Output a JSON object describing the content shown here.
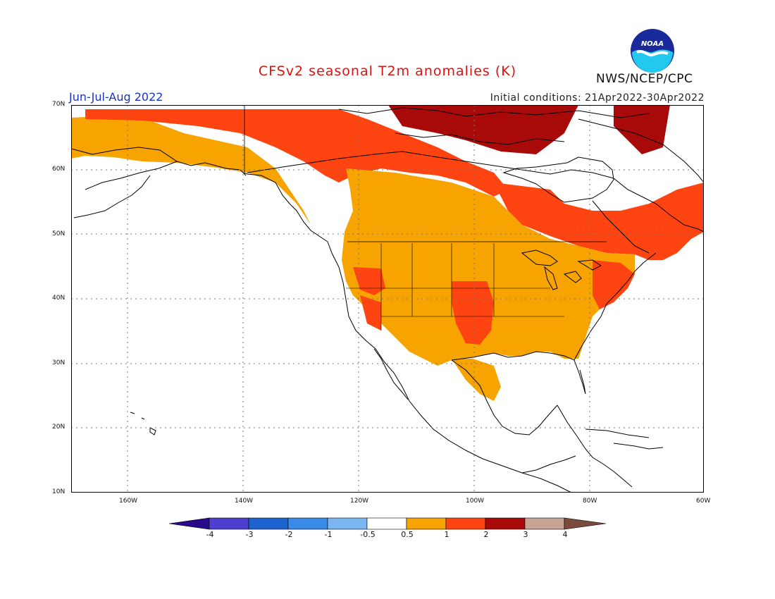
{
  "title": "CFSv2 seasonal T2m anomalies (K)",
  "season": "Jun-Jul-Aug 2022",
  "initial_conditions": "Initial conditions: 21Apr2022-30Apr2022",
  "agency": "NWS/NCEP/CPC",
  "logo_text": "NOAA",
  "colors": {
    "title": "#dd1111",
    "season": "#1a33cc",
    "bin_0p5_1": "#f7a300",
    "bin_1_2": "#ff4411",
    "bin_2_3": "#a80a0a",
    "land_outline": "#000000"
  },
  "lat_labels": [
    "70N",
    "60N",
    "50N",
    "40N",
    "30N",
    "20N",
    "10N"
  ],
  "lon_labels": [
    "160W",
    "140W",
    "120W",
    "100W",
    "80W",
    "60W"
  ],
  "colorbar": {
    "colors": [
      "#2a0a8c",
      "#4c3fd0",
      "#1d63cf",
      "#3a8ae8",
      "#7ab6f2",
      "#ffffff",
      "#f7a300",
      "#ff4411",
      "#a80a0a",
      "#c8a494",
      "#7a4a3c"
    ],
    "labels": [
      "-4",
      "-3",
      "-2",
      "-1",
      "-0.5",
      "0.5",
      "1",
      "2",
      "3",
      "4"
    ]
  }
}
